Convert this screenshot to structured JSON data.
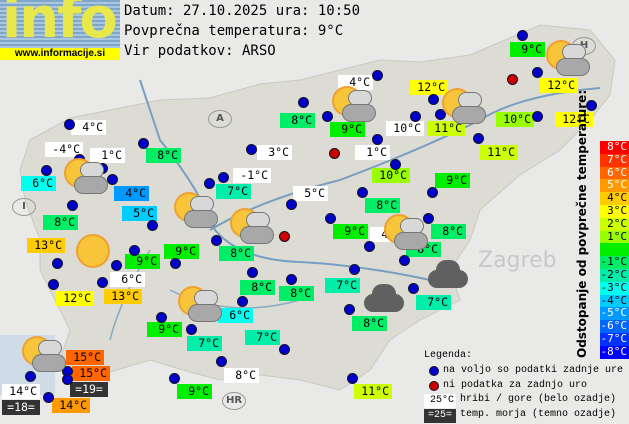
{
  "logo": {
    "text": "info",
    "url": "www.informacije.si"
  },
  "header": {
    "date_line": "Datum: 27.10.2025 ura: 10:50",
    "avg_line": "Povprečna temperatura: 9°C",
    "source_line": "Vir podatkov: ARSO"
  },
  "average_temperature": 9,
  "map_labels": {
    "zagreb": "Zagreb",
    "austria": "A",
    "italy": "I",
    "hungary": "H",
    "croatia": "HR"
  },
  "stations": [
    {
      "t": "9°C",
      "kind": "normal"
    },
    {
      "t": "12°C",
      "kind": "normal"
    },
    {
      "t": "4°C",
      "kind": "mountain"
    },
    {
      "t": "12°C",
      "kind": "normal"
    },
    {
      "t": "8°C",
      "kind": "normal"
    },
    {
      "t": "9°C",
      "kind": "normal"
    },
    {
      "t": "10°C",
      "kind": "mountain"
    },
    {
      "t": "11°C",
      "kind": "normal"
    },
    {
      "t": "10°C",
      "kind": "normal"
    },
    {
      "t": "12°C",
      "kind": "normal"
    },
    {
      "t": "11°C",
      "kind": "normal"
    },
    {
      "t": "1°C",
      "kind": "mountain"
    },
    {
      "t": "10°C",
      "kind": "normal"
    },
    {
      "t": "9°C",
      "kind": "normal"
    },
    {
      "t": "5°C",
      "kind": "mountain"
    },
    {
      "t": "8°C",
      "kind": "normal"
    },
    {
      "t": "4°C",
      "kind": "mountain"
    },
    {
      "t": "-4°C",
      "kind": "mountain"
    },
    {
      "t": "1°C",
      "kind": "mountain"
    },
    {
      "t": "8°C",
      "kind": "normal"
    },
    {
      "t": "3°C",
      "kind": "mountain"
    },
    {
      "t": "6°C",
      "kind": "normal"
    },
    {
      "t": "4°C",
      "kind": "normal"
    },
    {
      "t": "-1°C",
      "kind": "mountain"
    },
    {
      "t": "7°C",
      "kind": "normal"
    },
    {
      "t": "5°C",
      "kind": "normal"
    },
    {
      "t": "8°C",
      "kind": "normal"
    },
    {
      "t": "13°C",
      "kind": "normal"
    },
    {
      "t": "9°C",
      "kind": "normal"
    },
    {
      "t": "9°C",
      "kind": "normal"
    },
    {
      "t": "8°C",
      "kind": "normal"
    },
    {
      "t": "6°C",
      "kind": "mountain"
    },
    {
      "t": "12°C",
      "kind": "normal"
    },
    {
      "t": "13°C",
      "kind": "normal"
    },
    {
      "t": "8°C",
      "kind": "normal"
    },
    {
      "t": "8°C",
      "kind": "normal"
    },
    {
      "t": "6°C",
      "kind": "normal"
    },
    {
      "t": "9°C",
      "kind": "normal"
    },
    {
      "t": "7°C",
      "kind": "normal"
    },
    {
      "t": "7°C",
      "kind": "normal"
    },
    {
      "t": "15°C",
      "kind": "normal"
    },
    {
      "t": "15°C",
      "kind": "normal"
    },
    {
      "t": "=19=",
      "kind": "sea"
    },
    {
      "t": "14°C",
      "kind": "mountain"
    },
    {
      "t": "=18=",
      "kind": "sea"
    },
    {
      "t": "14°C",
      "kind": "normal"
    },
    {
      "t": "8°C",
      "kind": "mountain"
    },
    {
      "t": "9°C",
      "kind": "normal"
    },
    {
      "t": "9°C",
      "kind": "normal"
    },
    {
      "t": "4°C",
      "kind": "mountain"
    },
    {
      "t": "8°C",
      "kind": "normal"
    },
    {
      "t": "8°C",
      "kind": "normal"
    },
    {
      "t": "7°C",
      "kind": "normal"
    },
    {
      "t": "7°C",
      "kind": "normal"
    },
    {
      "t": "8°C",
      "kind": "normal"
    },
    {
      "t": "11°C",
      "kind": "normal"
    }
  ],
  "dot_status": {
    "available_color": "#0000cc",
    "missing_color": "#cc0000"
  },
  "weather_icons": [
    "sun-cloud",
    "sun-cloud",
    "sun-cloud",
    "sun-cloud",
    "sun-cloud",
    "sun-cloud",
    "sun",
    "sun-cloud",
    "sun-cloud",
    "sun-cloud",
    "dark-cloud",
    "dark-cloud"
  ],
  "scale": {
    "title": "Odstopanje od povprečne temperature:",
    "items": [
      {
        "label": "8°C",
        "color": "#ff0000"
      },
      {
        "label": "7°C",
        "color": "#ff3300"
      },
      {
        "label": "6°C",
        "color": "#ff6600"
      },
      {
        "label": "5°C",
        "color": "#ff9900"
      },
      {
        "label": "4°C",
        "color": "#ffcc00"
      },
      {
        "label": "3°C",
        "color": "#ffff00"
      },
      {
        "label": "2°C",
        "color": "#ccff00"
      },
      {
        "label": "1°C",
        "color": "#99ff00"
      },
      {
        "label": "",
        "color": "#00ee00"
      },
      {
        "label": "-1°C",
        "color": "#00ee66"
      },
      {
        "label": "-2°C",
        "color": "#00eeaa"
      },
      {
        "label": "-3°C",
        "color": "#00ffee"
      },
      {
        "label": "-4°C",
        "color": "#00ccff"
      },
      {
        "label": "-5°C",
        "color": "#0099ff"
      },
      {
        "label": "-6°C",
        "color": "#0066ff"
      },
      {
        "label": "-7°C",
        "color": "#0033ff"
      },
      {
        "label": "-8°C",
        "color": "#0000ff"
      }
    ]
  },
  "legend": {
    "title": "Legenda:",
    "available": "na voljo so podatki zadnje ure",
    "missing": "ni podatka za zadnjo uro",
    "mountain_sample": "25°C",
    "mountain_text": "hribi / gore (belo ozadje)",
    "sea_sample": "=25=",
    "sea_text": "temp. morja (temno ozadje)"
  }
}
